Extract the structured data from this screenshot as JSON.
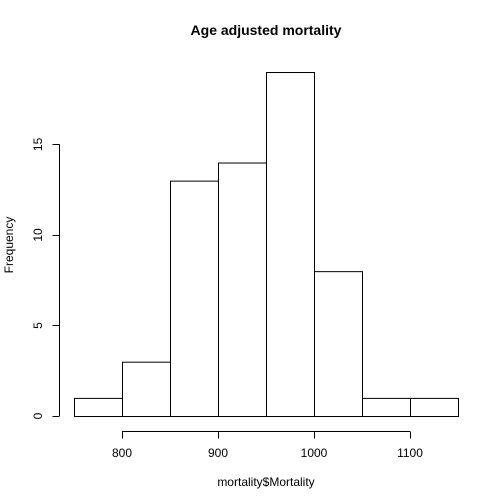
{
  "chart_data": {
    "type": "bar",
    "title": "Age adjusted mortality",
    "xlabel": "mortality$Mortality",
    "ylabel": "Frequency",
    "bin_edges": [
      750,
      800,
      850,
      900,
      950,
      1000,
      1050,
      1100,
      1150
    ],
    "values": [
      1,
      3,
      13,
      14,
      19,
      8,
      1,
      1
    ],
    "x_ticks": [
      800,
      900,
      1000,
      1100
    ],
    "y_ticks": [
      0,
      5,
      10,
      15
    ],
    "xlim": [
      750,
      1150
    ],
    "ylim": [
      0,
      19
    ],
    "grid": false,
    "colors": {
      "bar_fill": "#ffffff",
      "bar_stroke": "#000000"
    }
  }
}
